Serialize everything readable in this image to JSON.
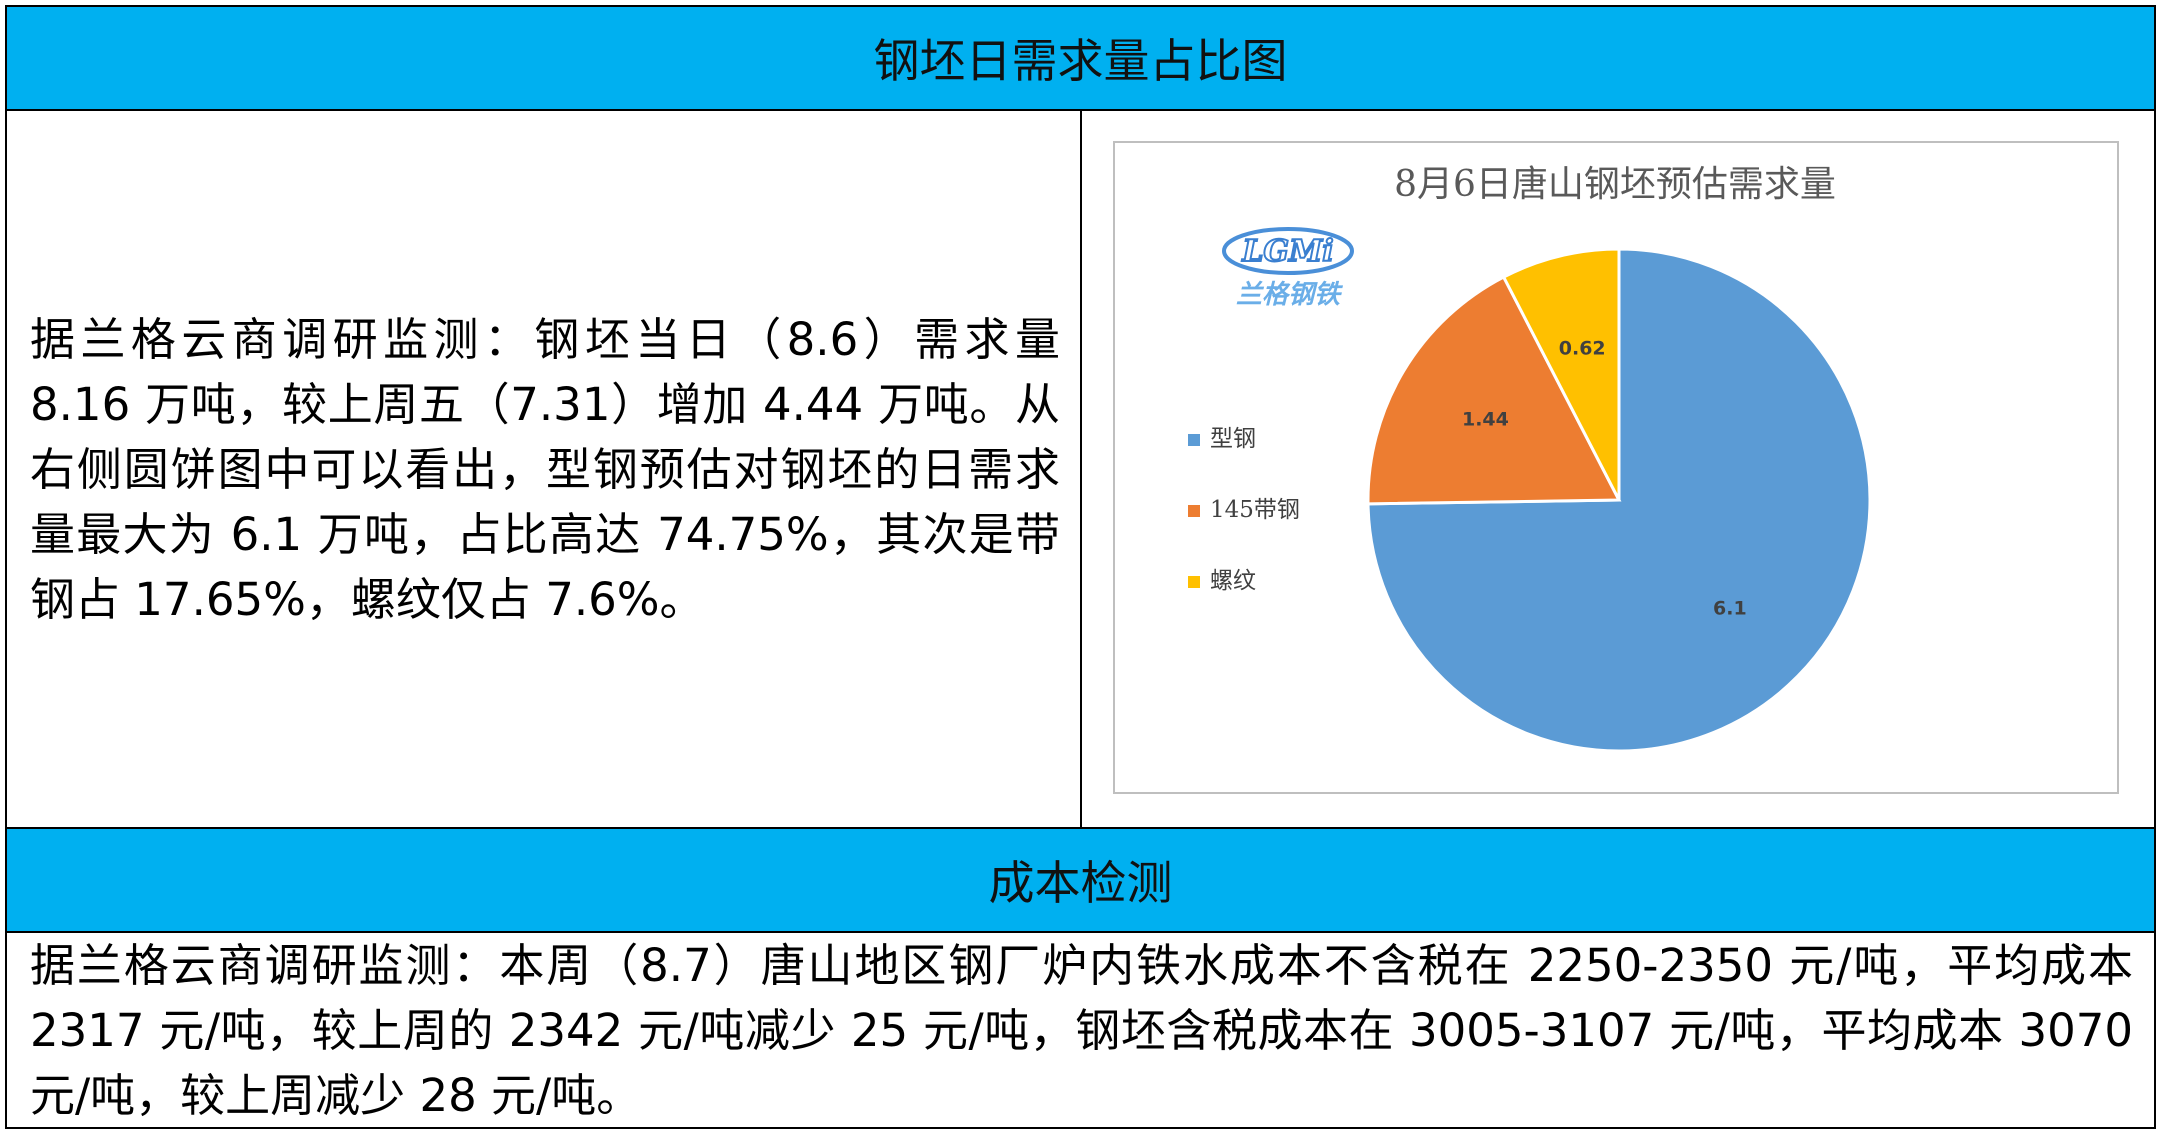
{
  "header": {
    "title": "钢坯日需求量占比图"
  },
  "summary": "据兰格云商调研监测：钢坯当日（8.6）需求量 8.16 万吨，较上周五（7.31）增加 4.44 万吨。从右侧圆饼图中可以看出，型钢预估对钢坯的日需求量最大为 6.1 万吨，占比高达 74.75%，其次是带钢占 17.65%，螺纹仅占 7.6%。",
  "logo": {
    "mark": "LGMi",
    "name": "兰格钢铁"
  },
  "chart_data": {
    "type": "pie",
    "title": "8月6日唐山钢坯预估需求量",
    "categories": [
      "型钢",
      "145带钢",
      "螺纹"
    ],
    "values": [
      6.1,
      1.44,
      0.62
    ],
    "colors": [
      "#5b9bd5",
      "#ed7d31",
      "#ffc000"
    ],
    "legend": "left"
  },
  "cost": {
    "title": "成本检测",
    "text": "据兰格云商调研监测：本周（8.7）唐山地区钢厂炉内铁水成本不含税在 2250-2350 元/吨，平均成本 2317 元/吨，较上周的 2342 元/吨减少 25 元/吨，钢坯含税成本在 3005-3107 元/吨，平均成本 3070 元/吨，较上周减少 28 元/吨。"
  }
}
